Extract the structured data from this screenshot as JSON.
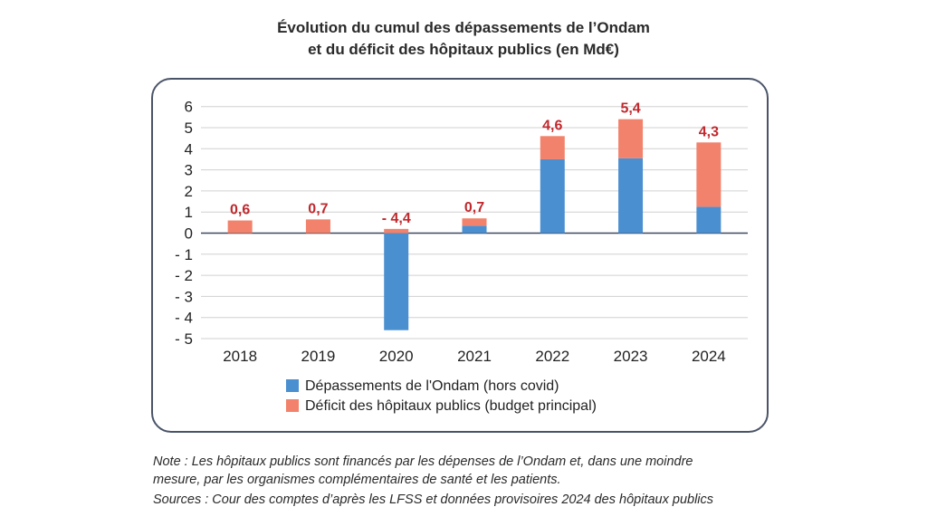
{
  "title_line1": "Évolution du cumul des dépassements de l’Ondam",
  "title_line2": "et du déficit des hôpitaux publics (en Md€)",
  "chart_data": {
    "type": "bar",
    "stacked": true,
    "categories": [
      "2018",
      "2019",
      "2020",
      "2021",
      "2022",
      "2023",
      "2024"
    ],
    "series": [
      {
        "name": "Dépassements de l'Ondam (hors covid)",
        "color": "#4a8fd0",
        "values": [
          0,
          0,
          -4.6,
          0.35,
          3.5,
          3.55,
          1.25
        ]
      },
      {
        "name": "Déficit des hôpitaux publics (budget principal)",
        "color": "#f2826b",
        "values": [
          0.6,
          0.65,
          0.2,
          0.35,
          1.1,
          1.85,
          3.05
        ]
      }
    ],
    "data_labels": [
      "0,6",
      "0,7",
      "- 4,4",
      "0,7",
      "4,6",
      "5,4",
      "4,3"
    ],
    "label_color": "#c0282d",
    "y_ticks": [
      "6",
      "5",
      "4",
      "3",
      "2",
      "1",
      "0",
      "- 1",
      "- 2",
      "- 3",
      "- 4",
      "- 5"
    ],
    "y_tick_values": [
      6,
      5,
      4,
      3,
      2,
      1,
      0,
      -1,
      -2,
      -3,
      -4,
      -5
    ],
    "ylim": [
      -5,
      6
    ],
    "grid": true,
    "legend_position": "bottom"
  },
  "legend": {
    "item1": "Dépassements de l'Ondam (hors covid)",
    "item2": "Déficit des hôpitaux publics (budget principal)",
    "color1": "#4a8fd0",
    "color2": "#f2826b"
  },
  "note_line1": "Note : Les hôpitaux publics sont financés par les dépenses de l’Ondam et, dans une moindre",
  "note_line2": "mesure, par les organismes complémentaires de santé et les patients.",
  "note_line3": "Sources : Cour des comptes d’après les LFSS et données provisoires 2024 des hôpitaux publics"
}
